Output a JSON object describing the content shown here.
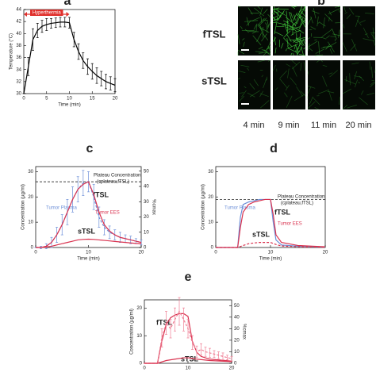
{
  "chart_data": [
    {
      "type": "line",
      "panel": "a",
      "xlabel": "Time (min)",
      "ylabel": "Temperature (°C)",
      "xlim": [
        0,
        20
      ],
      "ylim": [
        30,
        44
      ],
      "xticks": [
        0,
        5,
        10,
        15,
        20
      ],
      "yticks": [
        30,
        32,
        34,
        36,
        38,
        40,
        42,
        44
      ],
      "highlight": {
        "label": "Hyperthermia",
        "range": [
          0,
          10
        ],
        "color": "#e0302c"
      },
      "series": [
        {
          "color": "#000000",
          "x": [
            0,
            1,
            2,
            3,
            4,
            5,
            6,
            7,
            8,
            9,
            10,
            11,
            12,
            13,
            14,
            15,
            16,
            17,
            18,
            19,
            20
          ],
          "values": [
            30,
            34.5,
            39,
            40.5,
            41.2,
            41.5,
            41.7,
            41.8,
            41.9,
            41.9,
            41.8,
            39,
            37,
            35.5,
            34.5,
            33.7,
            33,
            32.5,
            32,
            31.7,
            31.4
          ],
          "errors": [
            0,
            1.5,
            1.8,
            1.2,
            1,
            1,
            0.8,
            0.8,
            0.8,
            0.8,
            0.9,
            1.2,
            1.3,
            1.3,
            1.3,
            1.3,
            1.3,
            1.2,
            1.2,
            1.1,
            1.1
          ]
        }
      ],
      "annotations": []
    },
    {
      "type": "line",
      "panel": "c",
      "xlabel": "Time (min)",
      "ylabel": "Concentration (µg/ml)",
      "y2label": "%cmax",
      "xlim": [
        0,
        20
      ],
      "ylim": [
        0,
        32
      ],
      "xticks": [
        0,
        10,
        20
      ],
      "yticks": [
        0,
        10,
        20,
        30
      ],
      "y2lim": [
        0,
        53
      ],
      "y2ticks": [
        0,
        10,
        20,
        30,
        40,
        50
      ],
      "reference": 26,
      "series": [
        {
          "color": "#6c8fd8",
          "dash": true,
          "x": [
            0,
            1,
            2,
            3,
            4,
            5,
            6,
            7,
            8,
            9,
            10,
            11,
            12,
            13,
            14,
            15,
            16,
            17,
            18,
            19,
            20
          ],
          "values": [
            0,
            0,
            0.5,
            2,
            5,
            9,
            14,
            19,
            23,
            25.5,
            26,
            20,
            12,
            8,
            6,
            5,
            4,
            3.5,
            3,
            2.5,
            2
          ],
          "errors": [
            0,
            0.5,
            1,
            2,
            3,
            4,
            5,
            5,
            5,
            5,
            4,
            5,
            4,
            3,
            2.5,
            2,
            2,
            1.5,
            1.5,
            1,
            1
          ]
        },
        {
          "color": "#d9324f",
          "x": [
            0,
            1,
            2,
            3,
            4,
            5,
            6,
            7,
            8,
            9,
            10,
            11,
            12,
            13,
            14,
            15,
            16,
            17,
            18,
            19,
            20
          ],
          "values": [
            0,
            0,
            0.5,
            2,
            5,
            9,
            14,
            19,
            23,
            25,
            26,
            21,
            14,
            9,
            6.5,
            5,
            4,
            3.5,
            3,
            2.5,
            2
          ]
        },
        {
          "color": "#d9324f",
          "x": [
            0,
            1,
            2,
            3,
            4,
            5,
            6,
            7,
            8,
            9,
            10,
            11,
            12,
            13,
            14,
            15,
            16,
            17,
            18,
            19,
            20
          ],
          "values": [
            0,
            0,
            0.2,
            0.5,
            1,
            1.5,
            2,
            2.5,
            3,
            3.2,
            3.3,
            3.2,
            3,
            2.8,
            2.6,
            2.4,
            2.2,
            2,
            1.8,
            1.6,
            1.5
          ]
        }
      ],
      "annotations": [
        "Plateau Concentration",
        "(cplateau,fTSL)",
        "fTSL",
        "sTSL",
        "Tumor Plasma",
        "Tumor EES"
      ]
    },
    {
      "type": "line",
      "panel": "d",
      "xlabel": "Time (min)",
      "ylabel": "Concentration (µg/ml)",
      "xlim": [
        0,
        20
      ],
      "ylim": [
        0,
        32
      ],
      "xticks": [
        0,
        10,
        20
      ],
      "yticks": [
        0,
        10,
        20,
        30
      ],
      "reference": 19,
      "series": [
        {
          "color": "#6c8fd8",
          "x": [
            0,
            4,
            4.5,
            5,
            6,
            7,
            8,
            9,
            10,
            10.5,
            11,
            12,
            15,
            20
          ],
          "values": [
            0,
            0,
            12,
            17,
            18,
            18.5,
            19,
            19,
            19,
            10,
            3,
            1,
            0.5,
            0.2
          ]
        },
        {
          "color": "#d9324f",
          "x": [
            0,
            4,
            4.5,
            5,
            6,
            7,
            8,
            9,
            10,
            10.5,
            11,
            12,
            15,
            20
          ],
          "values": [
            0,
            0,
            8,
            14,
            17,
            18,
            18.5,
            19,
            19,
            13,
            5,
            2,
            0.8,
            0.3
          ]
        },
        {
          "color": "#d9324f",
          "dash": true,
          "x": [
            0,
            4,
            5,
            6,
            7,
            8,
            9,
            10,
            11,
            12,
            15,
            20
          ],
          "values": [
            0,
            0,
            0.8,
            1.5,
            1.8,
            2,
            2,
            2,
            1.2,
            0.6,
            0.3,
            0.1
          ]
        }
      ],
      "annotations": [
        "Plateau Concentration",
        "(cplateau,fTSL)",
        "fTSL",
        "sTSL",
        "Tumor Plasma",
        "Tumor EES"
      ]
    },
    {
      "type": "line",
      "panel": "e",
      "ylabel": "Concentration (µg/ml)",
      "y2label": "%cmax",
      "xlim": [
        0,
        20
      ],
      "ylim": [
        0,
        23
      ],
      "xticks": [
        0,
        10,
        20
      ],
      "yticks": [
        0,
        10,
        20
      ],
      "y2lim": [
        0,
        55
      ],
      "y2ticks": [
        0,
        10,
        20,
        30,
        40,
        50
      ],
      "series": [
        {
          "color": "#d9324f",
          "x": [
            0,
            3,
            4,
            5,
            6,
            7,
            8,
            9,
            10,
            11,
            12,
            13,
            15,
            20
          ],
          "values": [
            0,
            0,
            8,
            14,
            16.5,
            17.5,
            18,
            18,
            17,
            8,
            4,
            2.5,
            1.5,
            0.8
          ]
        },
        {
          "color": "#ef7f95",
          "dash": true,
          "axis": "y2",
          "x": [
            0,
            3,
            4,
            5,
            6,
            7,
            8,
            9,
            10,
            11,
            12,
            13,
            14,
            15,
            16,
            17,
            18,
            19,
            20
          ],
          "values": [
            0,
            0,
            22,
            35,
            30,
            38,
            45,
            38,
            30,
            18,
            10,
            12,
            10,
            9,
            8,
            7,
            6,
            5,
            4
          ],
          "errors": [
            0,
            0,
            8,
            10,
            8,
            10,
            12,
            10,
            8,
            6,
            5,
            5,
            4,
            4,
            3,
            3,
            3,
            2,
            2
          ]
        },
        {
          "color": "#d9324f",
          "x": [
            0,
            3,
            5,
            7,
            9,
            10,
            11,
            12,
            15,
            20
          ],
          "values": [
            0,
            0,
            1,
            1.5,
            2,
            2,
            1.8,
            1.5,
            1,
            0.6
          ]
        }
      ],
      "annotations": [
        "fTSL",
        "sTSL"
      ]
    }
  ],
  "images": {
    "panel": "b",
    "rows": [
      "fTSL",
      "sTSL"
    ],
    "columns": [
      "4 min",
      "9 min",
      "11 min",
      "20 min"
    ]
  }
}
